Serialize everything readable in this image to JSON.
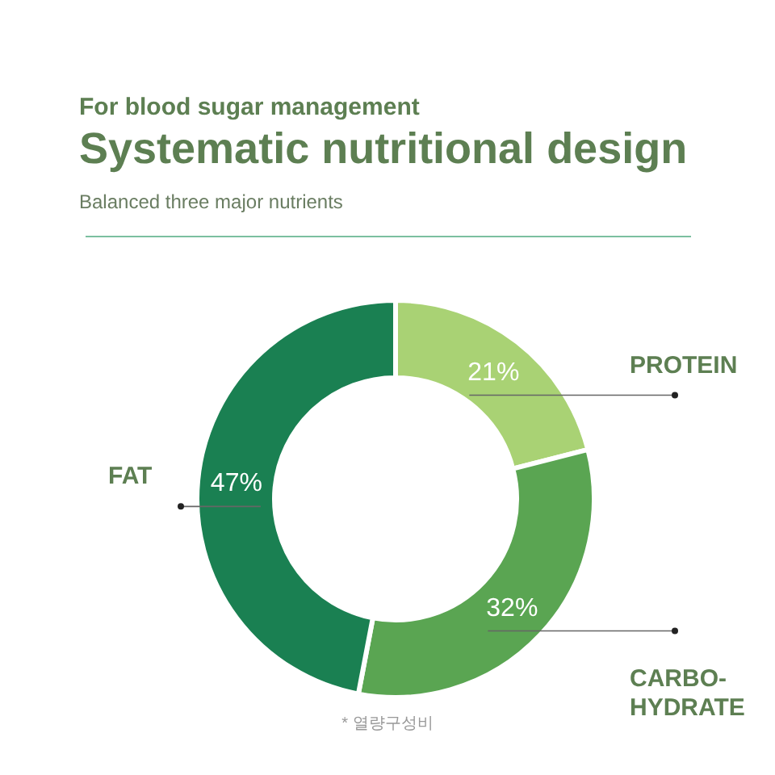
{
  "chart_data": {
    "type": "donut",
    "title": "Systematic nutritional design",
    "subtitle": "Balanced three major nutrients",
    "annotations": [
      "For blood sugar management",
      "* 열량구성비"
    ],
    "categories": [
      "PROTEIN",
      "CARBO-HYDRATE",
      "FAT"
    ],
    "values": [
      21,
      32,
      47
    ],
    "value_labels": [
      "21%",
      "32%",
      "47%"
    ],
    "colors": [
      "#a9d274",
      "#5aa552",
      "#1a8052"
    ],
    "legend": false
  }
}
